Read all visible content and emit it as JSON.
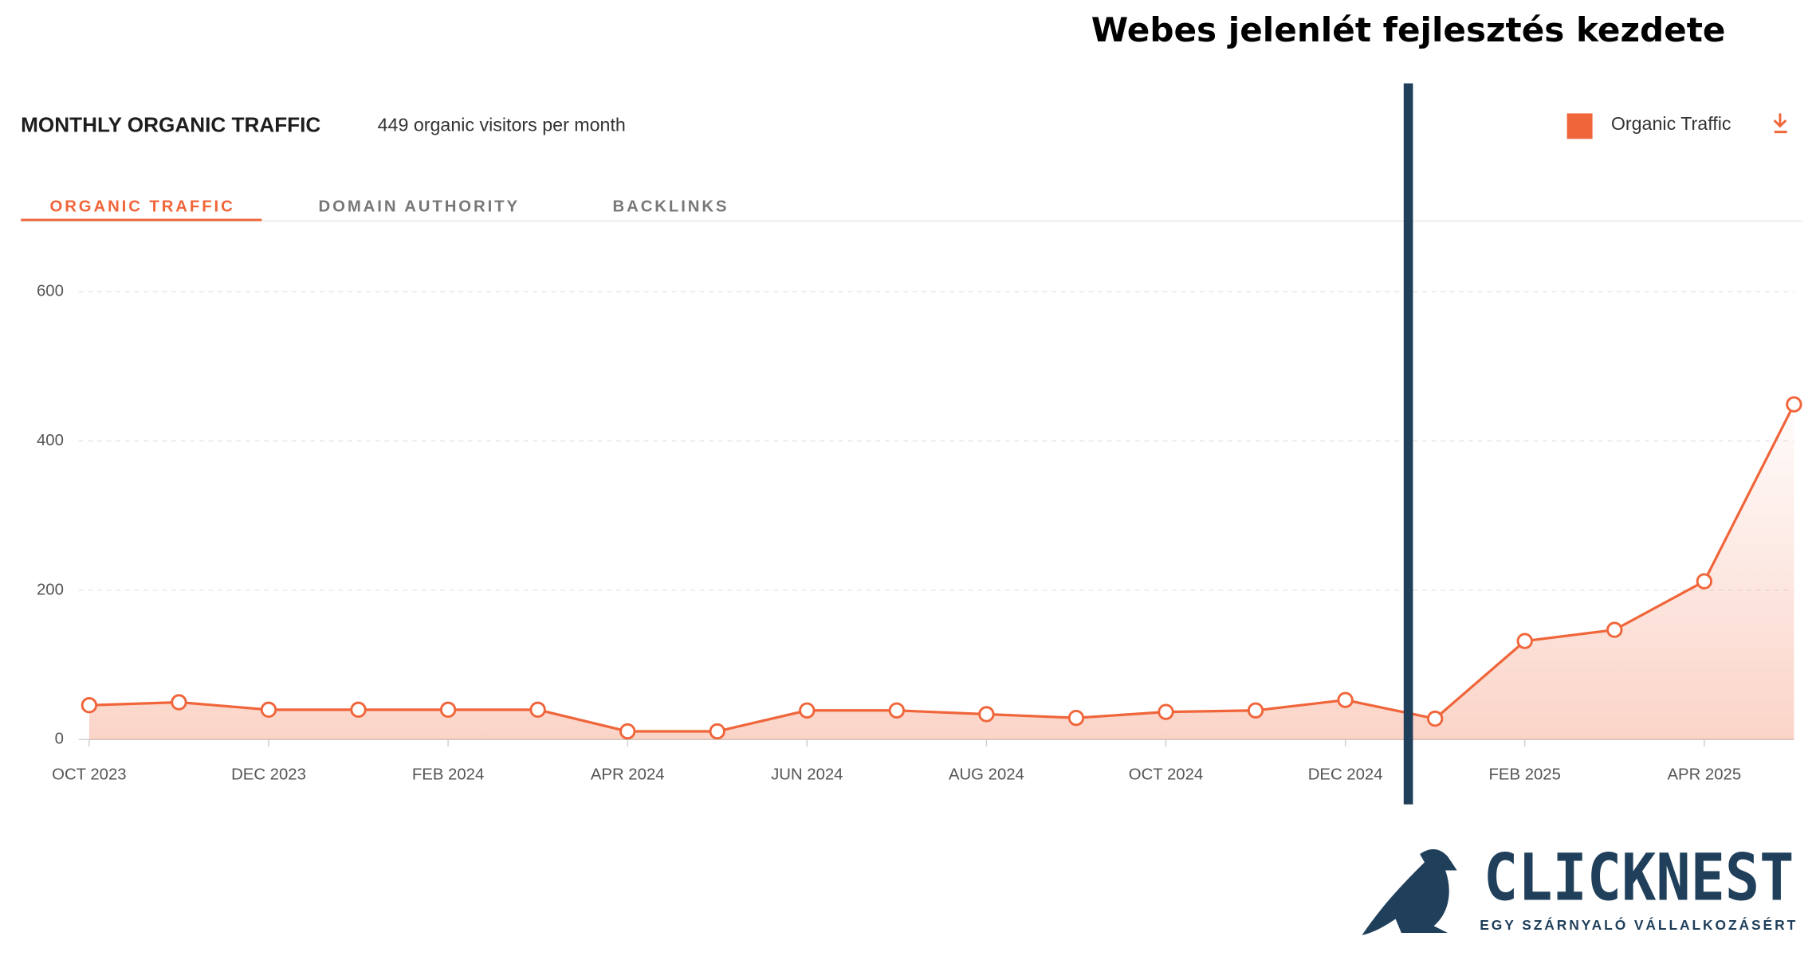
{
  "chart_data": {
    "type": "line",
    "title": "MONTHLY ORGANIC TRAFFIC",
    "subtitle": "449 organic visitors per month",
    "tabs": [
      "ORGANIC TRAFFIC",
      "DOMAIN AUTHORITY",
      "BACKLINKS"
    ],
    "annotation": "Webes jelenlét fejlesztés kezdete",
    "categories": [
      "OCT 2023",
      null,
      "DEC 2023",
      null,
      "FEB 2024",
      null,
      "APR 2024",
      null,
      "JUN 2024",
      null,
      "AUG 2024",
      null,
      "OCT 2024",
      null,
      "DEC 2024",
      null,
      "FEB 2025",
      null,
      "APR 2025",
      null
    ],
    "series": [
      {
        "name": "Organic Traffic",
        "color": "#f0653a",
        "values": [
          46,
          50,
          40,
          40,
          40,
          40,
          11,
          11,
          39,
          39,
          34,
          29,
          37,
          39,
          53,
          28,
          132,
          147,
          212,
          449
        ]
      }
    ],
    "ylim": [
      0,
      600
    ],
    "yticks": [
      0,
      200,
      400,
      600
    ],
    "grid": true,
    "legend": "top-right"
  },
  "logo": {
    "name": "CLICKNEST",
    "tagline": "EGY SZÁRNYALÓ VÁLLALKOZÁSÉRT"
  }
}
